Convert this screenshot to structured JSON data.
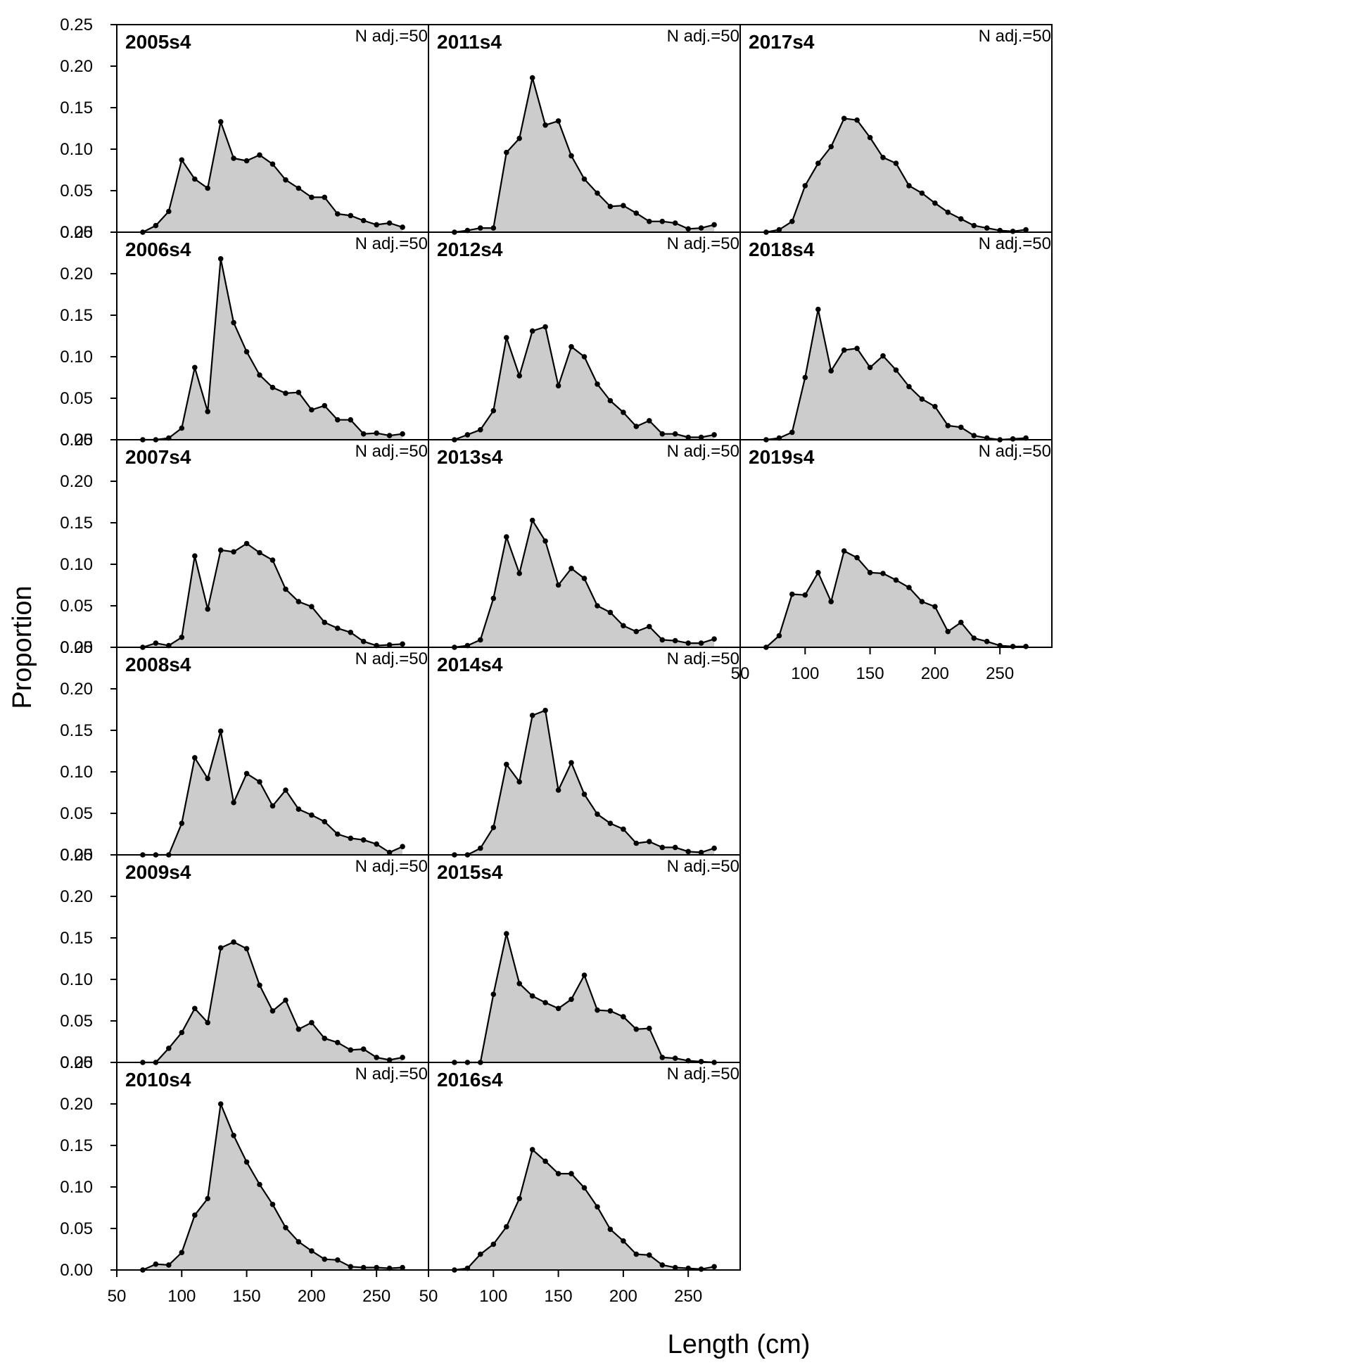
{
  "figure": {
    "xlabel": "Length (cm)",
    "ylabel": "Proportion"
  },
  "chart_data": {
    "type": "area",
    "xlabel": "Length (cm)",
    "ylabel": "Proportion",
    "xlim": [
      50,
      290
    ],
    "ylim": [
      0,
      0.25
    ],
    "x_ticks": [
      50,
      100,
      150,
      200,
      250
    ],
    "y_ticks": [
      "0.00",
      "0.05",
      "0.10",
      "0.15",
      "0.20",
      "0.25"
    ],
    "x": [
      70,
      80,
      90,
      100,
      110,
      120,
      130,
      140,
      150,
      160,
      170,
      180,
      190,
      200,
      210,
      220,
      230,
      240,
      250,
      260,
      270
    ],
    "fill_color": "#cccccc",
    "line_color": "#000000",
    "panels": [
      {
        "title": "2005s4",
        "note": "N adj.=50",
        "values": [
          0.0,
          0.008,
          0.025,
          0.087,
          0.064,
          0.053,
          0.133,
          0.089,
          0.086,
          0.093,
          0.082,
          0.063,
          0.053,
          0.042,
          0.042,
          0.022,
          0.02,
          0.014,
          0.009,
          0.011,
          0.006
        ]
      },
      {
        "title": "2006s4",
        "note": "N adj.=50",
        "values": [
          0.0,
          0.0,
          0.002,
          0.014,
          0.087,
          0.034,
          0.218,
          0.141,
          0.106,
          0.078,
          0.063,
          0.056,
          0.057,
          0.036,
          0.041,
          0.024,
          0.024,
          0.007,
          0.008,
          0.005,
          0.007
        ]
      },
      {
        "title": "2007s4",
        "note": "N adj.=50",
        "values": [
          0.0,
          0.005,
          0.002,
          0.012,
          0.11,
          0.046,
          0.117,
          0.115,
          0.125,
          0.114,
          0.105,
          0.07,
          0.055,
          0.049,
          0.03,
          0.023,
          0.018,
          0.007,
          0.002,
          0.003,
          0.004
        ]
      },
      {
        "title": "2008s4",
        "note": "N adj.=50",
        "values": [
          0.0,
          0.0,
          0.0,
          0.038,
          0.117,
          0.092,
          0.149,
          0.063,
          0.098,
          0.088,
          0.059,
          0.078,
          0.055,
          0.048,
          0.04,
          0.025,
          0.02,
          0.018,
          0.013,
          0.003,
          0.01
        ]
      },
      {
        "title": "2009s4",
        "note": "N adj.=50",
        "values": [
          0.0,
          0.0,
          0.017,
          0.036,
          0.065,
          0.048,
          0.138,
          0.145,
          0.137,
          0.093,
          0.062,
          0.075,
          0.04,
          0.048,
          0.029,
          0.024,
          0.015,
          0.016,
          0.006,
          0.003,
          0.006
        ]
      },
      {
        "title": "2010s4",
        "note": "N adj.=50",
        "values": [
          0.0,
          0.007,
          0.006,
          0.021,
          0.066,
          0.086,
          0.2,
          0.162,
          0.13,
          0.103,
          0.079,
          0.051,
          0.034,
          0.023,
          0.013,
          0.012,
          0.004,
          0.003,
          0.003,
          0.002,
          0.003
        ]
      },
      {
        "title": "2011s4",
        "note": "N adj.=50",
        "values": [
          0.0,
          0.002,
          0.005,
          0.005,
          0.096,
          0.113,
          0.186,
          0.129,
          0.134,
          0.092,
          0.064,
          0.047,
          0.031,
          0.032,
          0.023,
          0.013,
          0.013,
          0.011,
          0.004,
          0.005,
          0.009
        ]
      },
      {
        "title": "2012s4",
        "note": "N adj.=50",
        "values": [
          0.0,
          0.006,
          0.012,
          0.035,
          0.123,
          0.077,
          0.131,
          0.136,
          0.065,
          0.112,
          0.1,
          0.067,
          0.047,
          0.033,
          0.016,
          0.023,
          0.007,
          0.007,
          0.003,
          0.003,
          0.006
        ]
      },
      {
        "title": "2013s4",
        "note": "N adj.=50",
        "values": [
          0.0,
          0.002,
          0.009,
          0.059,
          0.133,
          0.089,
          0.153,
          0.128,
          0.075,
          0.095,
          0.083,
          0.05,
          0.042,
          0.026,
          0.019,
          0.025,
          0.009,
          0.008,
          0.005,
          0.005,
          0.01
        ]
      },
      {
        "title": "2014s4",
        "note": "N adj.=50",
        "values": [
          0.0,
          0.0,
          0.008,
          0.033,
          0.109,
          0.088,
          0.168,
          0.174,
          0.078,
          0.111,
          0.073,
          0.049,
          0.038,
          0.031,
          0.014,
          0.016,
          0.009,
          0.009,
          0.004,
          0.003,
          0.008
        ]
      },
      {
        "title": "2015s4",
        "note": "N adj.=50",
        "values": [
          0.0,
          0.0,
          0.0,
          0.082,
          0.155,
          0.095,
          0.08,
          0.072,
          0.065,
          0.076,
          0.105,
          0.063,
          0.062,
          0.055,
          0.04,
          0.041,
          0.006,
          0.005,
          0.002,
          0.001,
          0.0
        ]
      },
      {
        "title": "2016s4",
        "note": "N adj.=50",
        "values": [
          0.0,
          0.002,
          0.019,
          0.031,
          0.052,
          0.086,
          0.145,
          0.131,
          0.116,
          0.116,
          0.099,
          0.076,
          0.049,
          0.035,
          0.019,
          0.018,
          0.006,
          0.003,
          0.002,
          0.001,
          0.004
        ]
      },
      {
        "title": "2017s4",
        "note": "N adj.=50",
        "values": [
          0.0,
          0.003,
          0.013,
          0.056,
          0.083,
          0.103,
          0.137,
          0.135,
          0.114,
          0.09,
          0.083,
          0.056,
          0.047,
          0.035,
          0.024,
          0.016,
          0.008,
          0.005,
          0.002,
          0.001,
          0.003
        ]
      },
      {
        "title": "2018s4",
        "note": "N adj.=50",
        "values": [
          0.0,
          0.002,
          0.009,
          0.075,
          0.157,
          0.083,
          0.108,
          0.11,
          0.087,
          0.101,
          0.084,
          0.064,
          0.049,
          0.04,
          0.017,
          0.015,
          0.005,
          0.002,
          0.0,
          0.001,
          0.002
        ]
      },
      {
        "title": "2019s4",
        "note": "N adj.=50",
        "values": [
          0.0,
          0.014,
          0.064,
          0.063,
          0.09,
          0.055,
          0.116,
          0.108,
          0.09,
          0.089,
          0.081,
          0.072,
          0.055,
          0.049,
          0.019,
          0.03,
          0.011,
          0.007,
          0.002,
          0.001,
          0.001
        ]
      }
    ]
  }
}
